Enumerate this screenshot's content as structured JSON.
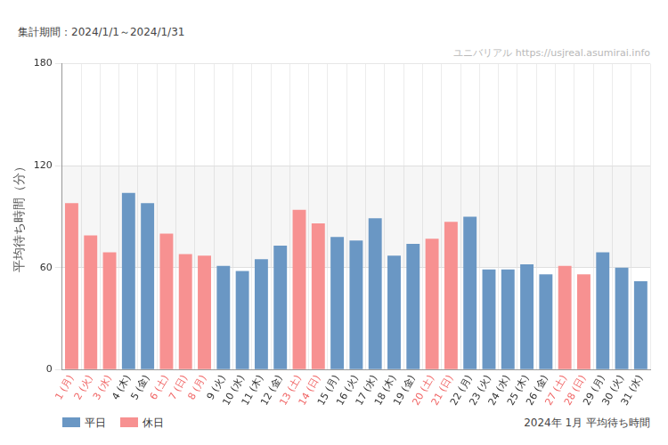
{
  "chart_data": {
    "type": "bar",
    "title": "2024年 1月 平均待ち時間",
    "subtitle": "集計期間：2024/1/1～2024/1/31",
    "annotations": [
      "ユニバリアル  https://usjreal.asumirai.info"
    ],
    "ylabel": "平均待ち時間（分）",
    "categories": [
      "1 (月)",
      "2 (火)",
      "3 (水)",
      "4 (木)",
      "5 (金)",
      "6 (土)",
      "7 (日)",
      "8 (月)",
      "9 (火)",
      "10 (水)",
      "11 (木)",
      "12 (金)",
      "13 (土)",
      "14 (日)",
      "15 (月)",
      "16 (火)",
      "17 (水)",
      "18 (木)",
      "19 (金)",
      "20 (土)",
      "21 (日)",
      "22 (月)",
      "23 (火)",
      "24 (水)",
      "25 (木)",
      "26 (金)",
      "27 (土)",
      "28 (日)",
      "29 (月)",
      "30 (火)",
      "31 (水)"
    ],
    "series": [
      {
        "name": "平日",
        "color": "#6a97c4",
        "values": [
          null,
          null,
          null,
          104,
          98,
          null,
          null,
          null,
          61,
          58,
          65,
          73,
          null,
          null,
          78,
          76,
          89,
          67,
          74,
          null,
          null,
          90,
          59,
          59,
          62,
          56,
          null,
          null,
          69,
          60,
          52
        ]
      },
      {
        "name": "休日",
        "color": "#f79191",
        "values": [
          98,
          79,
          69,
          null,
          null,
          80,
          68,
          67,
          null,
          null,
          null,
          null,
          94,
          86,
          null,
          null,
          null,
          null,
          null,
          77,
          87,
          null,
          null,
          null,
          null,
          null,
          61,
          56,
          null,
          null,
          null
        ]
      }
    ],
    "stacked": true,
    "ylim": [
      0,
      180
    ],
    "yticks": [
      0,
      60,
      120,
      180
    ],
    "grid": true,
    "legend": "bottom-left"
  }
}
